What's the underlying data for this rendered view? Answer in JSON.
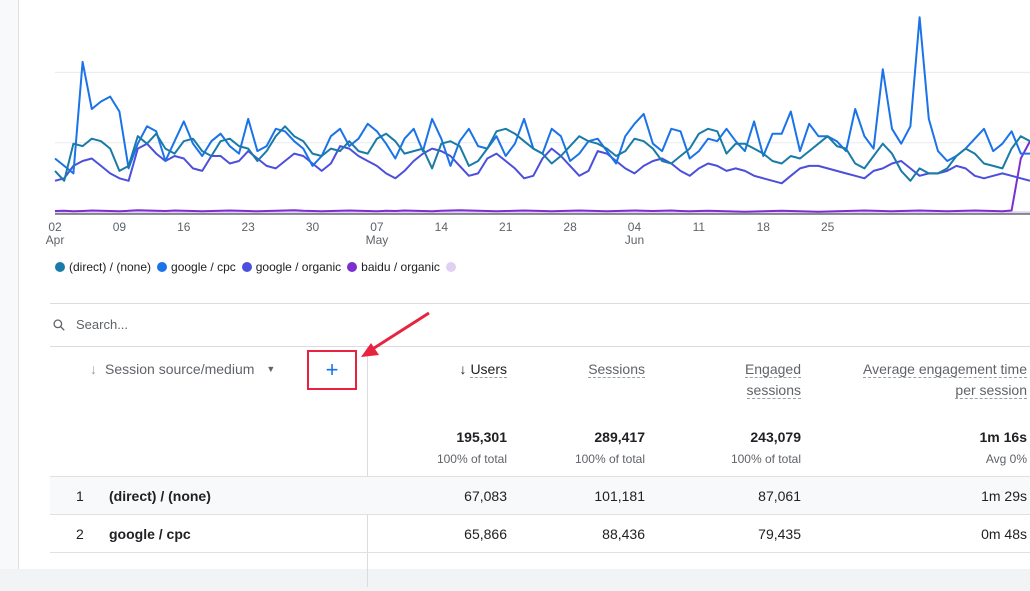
{
  "chart_data": {
    "type": "line",
    "x_tick_labels": [
      "02",
      "09",
      "16",
      "23",
      "30",
      "07",
      "14",
      "21",
      "28",
      "04",
      "11",
      "18",
      "25"
    ],
    "x_month_labels": [
      {
        "tick": "02",
        "month": "Apr"
      },
      {
        "tick": "07",
        "month": "May"
      },
      {
        "tick": "04",
        "month": "Jun"
      }
    ],
    "grid": true,
    "series": [
      {
        "name": "(direct) / (none)",
        "color": "#1a7ba8",
        "values": [
          1700,
          1300,
          2800,
          2700,
          3000,
          2900,
          2600,
          1700,
          1900,
          3100,
          2800,
          3200,
          2600,
          2400,
          2900,
          3000,
          2500,
          2300,
          2900,
          3000,
          2700,
          2600,
          2100,
          2500,
          3100,
          3500,
          3100,
          2900,
          2400,
          2300,
          2600,
          2500,
          2900,
          2500,
          2400,
          3000,
          3200,
          2900,
          2400,
          2500,
          2600,
          1800,
          2800,
          2900,
          2700,
          1900,
          2100,
          2600,
          3300,
          3400,
          3200,
          2900,
          2600,
          2400,
          2000,
          2300,
          2700,
          3100,
          2900,
          2800,
          2600,
          2300,
          2500,
          3000,
          2900,
          2600,
          2100,
          2000,
          2300,
          2600,
          3200,
          3400,
          3300,
          2400,
          2800,
          2800,
          2600,
          2400,
          2100,
          2000,
          2300,
          2200,
          2500,
          2800,
          3100,
          2700,
          2600,
          2000,
          1800,
          2300,
          2800,
          2400,
          1700,
          1300,
          1800,
          1600,
          1600,
          1800,
          2300,
          2600,
          2400,
          2000,
          1900,
          1800,
          2600,
          3100,
          2900
        ]
      },
      {
        "name": "google / cpc",
        "color": "#1a73e8",
        "values": [
          2200,
          1900,
          1600,
          6100,
          4200,
          4500,
          4700,
          4100,
          1800,
          2800,
          3500,
          3300,
          2100,
          2900,
          3700,
          2800,
          2300,
          2900,
          3200,
          2700,
          2400,
          3800,
          2500,
          2700,
          3400,
          3300,
          2900,
          2600,
          1900,
          2300,
          3100,
          3400,
          2700,
          3000,
          3600,
          3300,
          2800,
          2200,
          3000,
          3400,
          2500,
          3800,
          3000,
          1900,
          2900,
          3400,
          2700,
          2600,
          3100,
          2300,
          2800,
          3800,
          2600,
          2400,
          3400,
          3100,
          2100,
          2400,
          2900,
          3000,
          2500,
          2000,
          3100,
          3600,
          4000,
          2800,
          2500,
          3400,
          3300,
          2200,
          2500,
          3000,
          2900,
          3400,
          2900,
          2500,
          3700,
          2300,
          3200,
          3200,
          4100,
          2500,
          3600,
          3100,
          3100,
          2900,
          2500,
          4200,
          3100,
          2600,
          5800,
          3400,
          2800,
          3500,
          7900,
          3800,
          2500,
          2100,
          2300,
          2600,
          3000,
          3400,
          2500,
          2800,
          3300,
          2400,
          2400
        ]
      },
      {
        "name": "google / organic",
        "color": "#4c4fdc",
        "values": [
          1300,
          1400,
          1900,
          2100,
          2200,
          1900,
          1600,
          1400,
          1300,
          2600,
          2800,
          2400,
          2100,
          2300,
          2200,
          1800,
          1700,
          2300,
          2300,
          2000,
          2100,
          2500,
          2200,
          1900,
          1800,
          2100,
          2400,
          2300,
          2000,
          1700,
          2000,
          2700,
          2600,
          2300,
          2100,
          1900,
          1600,
          1400,
          1700,
          2100,
          2400,
          2600,
          2500,
          2300,
          1900,
          1500,
          1600,
          2200,
          2400,
          2100,
          1800,
          1400,
          1500,
          2200,
          2600,
          2300,
          1900,
          1500,
          1700,
          2500,
          2400,
          2100,
          1800,
          1600,
          1900,
          2100,
          2200,
          2000,
          1700,
          1500,
          1800,
          2000,
          1900,
          1700,
          1800,
          1700,
          1500,
          1400,
          1300,
          1200,
          1500,
          1800,
          1900,
          1900,
          1800,
          1700,
          1600,
          1500,
          1400,
          1700,
          1800,
          2000,
          2100,
          1800,
          1500,
          1600,
          1600,
          1700,
          1900,
          1800,
          1500,
          1400,
          1500,
          1600,
          1500,
          1400,
          1300
        ]
      },
      {
        "name": "baidu / organic",
        "color": "#7b2fd0",
        "values": [
          80,
          90,
          70,
          80,
          100,
          90,
          80,
          70,
          90,
          110,
          100,
          90,
          80,
          100,
          90,
          80,
          70,
          80,
          90,
          100,
          90,
          80,
          70,
          80,
          90,
          100,
          110,
          90,
          80,
          70,
          80,
          90,
          100,
          90,
          80,
          70,
          90,
          80,
          100,
          90,
          80,
          70,
          90,
          100,
          110,
          100,
          90,
          80,
          70,
          80,
          90,
          100,
          90,
          80,
          70,
          80,
          90,
          100,
          90,
          80,
          70,
          80,
          90,
          100,
          90,
          80,
          90,
          100,
          80,
          70,
          80,
          90,
          80,
          70,
          60,
          50,
          60,
          70,
          80,
          90,
          80,
          70,
          60,
          50,
          60,
          70,
          80,
          90,
          100,
          90,
          80,
          70,
          80,
          90,
          100,
          90,
          80,
          70,
          80,
          90,
          100,
          90,
          80,
          70,
          100,
          2200,
          2900
        ]
      },
      {
        "name": "",
        "color": "#e2d0f2",
        "values": [
          30,
          30,
          30,
          30,
          30,
          30,
          30,
          30,
          30,
          30,
          30,
          30,
          30,
          30,
          30,
          30,
          30,
          30,
          30,
          30,
          30,
          30,
          30,
          30,
          30,
          30,
          30,
          30,
          30,
          30,
          30,
          30,
          30,
          30,
          30,
          30,
          30,
          30,
          30,
          30,
          30,
          30,
          30,
          30,
          30,
          30,
          30,
          30,
          30,
          30,
          30,
          30,
          30,
          30,
          30,
          30,
          30,
          30,
          30,
          30,
          30,
          30,
          30,
          30,
          30,
          30,
          30,
          30,
          30,
          30,
          30,
          30,
          30,
          30,
          30,
          30,
          30,
          30,
          30,
          30,
          30,
          30,
          30,
          30,
          30,
          30,
          30,
          30,
          30,
          30,
          30,
          30,
          30,
          30,
          30,
          30,
          30,
          30,
          30,
          30,
          30,
          30,
          30,
          30,
          30,
          30,
          30
        ]
      }
    ],
    "ylim": [
      0,
      8600
    ]
  },
  "legend": [
    {
      "label": "(direct) / (none)",
      "color": "#1a7ba8"
    },
    {
      "label": "google / cpc",
      "color": "#1a73e8"
    },
    {
      "label": "google / organic",
      "color": "#4c4fdc"
    },
    {
      "label": "baidu / organic",
      "color": "#7b2fd0"
    },
    {
      "label": "",
      "color": "#e2d0f2"
    }
  ],
  "search": {
    "placeholder": "Search..."
  },
  "table": {
    "dimension_label": "Session source/medium",
    "add_dimension_symbol": "+",
    "columns": {
      "users": "Users",
      "sessions": "Sessions",
      "engaged_line1": "Engaged",
      "engaged_line2": "sessions",
      "avg_line1": "Average engagement time",
      "avg_line2": "per session"
    },
    "totals": {
      "users": "195,301",
      "users_sub": "100% of total",
      "sessions": "289,417",
      "sessions_sub": "100% of total",
      "engaged": "243,079",
      "engaged_sub": "100% of total",
      "avg": "1m 16s",
      "avg_sub": "Avg 0%"
    },
    "rows": [
      {
        "index": "1",
        "name": "(direct) / (none)",
        "users": "67,083",
        "sessions": "101,181",
        "engaged": "87,061",
        "avg": "1m 29s"
      },
      {
        "index": "2",
        "name": "google / cpc",
        "users": "65,866",
        "sessions": "88,436",
        "engaged": "79,435",
        "avg": "0m 48s"
      }
    ]
  },
  "colors": {
    "accent": "#1a73e8",
    "highlight": "#e8233f"
  }
}
